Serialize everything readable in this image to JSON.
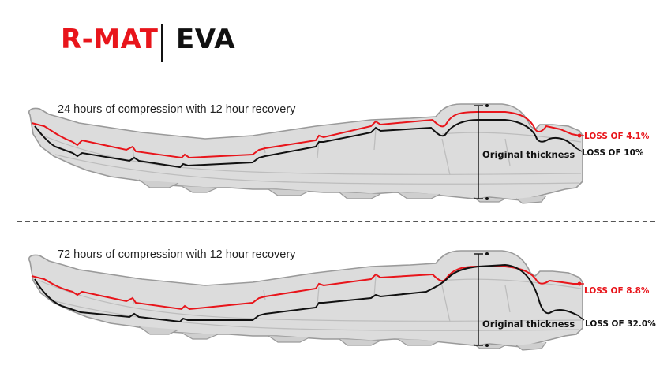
{
  "legend": {
    "rmat": {
      "label": "R-MAT",
      "color": "#e8151b"
    },
    "eva": {
      "label": "EVA",
      "color": "#111111"
    }
  },
  "panels": [
    {
      "caption": "24 hours of compression with 12 hour recovery",
      "thickness_label": "Original thickness",
      "rmat_loss": "LOSS OF 4.1%",
      "eva_loss": "LOSS OF 10%"
    },
    {
      "caption": "72 hours of compression with 12 hour recovery",
      "thickness_label": "Original thickness",
      "rmat_loss": "LOSS OF 8.8%",
      "eva_loss": "LOSS OF 32.0%"
    }
  ],
  "values": {
    "rmat_loss_24h_percent": 4.1,
    "eva_loss_24h_percent": 10,
    "rmat_loss_72h_percent": 8.8,
    "eva_loss_72h_percent": 32.0
  },
  "colors": {
    "sole_fill": "#dcdcdc",
    "sole_outline": "#9a9a9a",
    "sole_detail": "#bdbdbd",
    "divider": "#555555"
  }
}
